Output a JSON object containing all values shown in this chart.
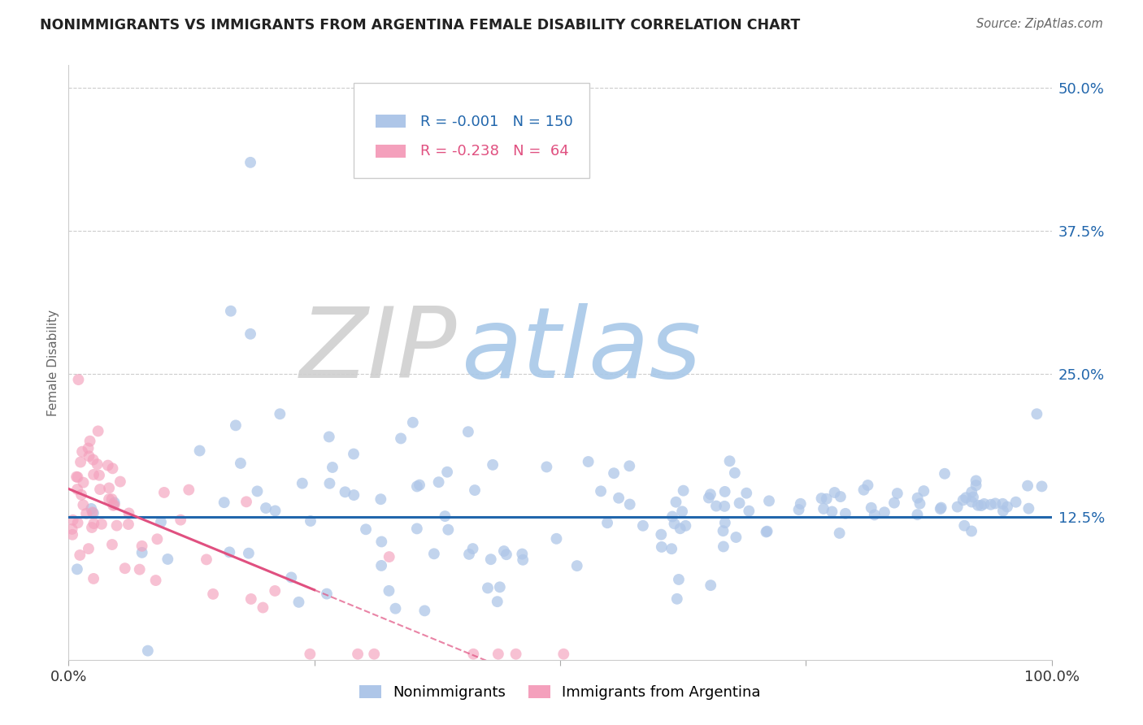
{
  "title": "NONIMMIGRANTS VS IMMIGRANTS FROM ARGENTINA FEMALE DISABILITY CORRELATION CHART",
  "source": "Source: ZipAtlas.com",
  "ylabel": "Female Disability",
  "legend_labels": [
    "Nonimmigrants",
    "Immigrants from Argentina"
  ],
  "R_nonimm": -0.001,
  "N_nonimm": 150,
  "R_imm": -0.238,
  "N_imm": 64,
  "nonimm_color": "#aec6e8",
  "imm_color": "#f4a0bc",
  "nonimm_line_color": "#2166ac",
  "imm_line_color": "#e05080",
  "xlim": [
    0.0,
    1.0
  ],
  "ylim": [
    0.0,
    0.52
  ],
  "ytick_vals": [
    0.0,
    0.125,
    0.25,
    0.375,
    0.5
  ],
  "ytick_labels": [
    "",
    "12.5%",
    "25.0%",
    "37.5%",
    "50.0%"
  ],
  "xticks": [
    0.0,
    0.25,
    0.5,
    0.75,
    1.0
  ],
  "xtick_labels": [
    "0.0%",
    "",
    "",
    "",
    "100.0%"
  ],
  "watermark_zip": "ZIP",
  "watermark_atlas": "atlas",
  "background_color": "#ffffff",
  "grid_color": "#cccccc"
}
